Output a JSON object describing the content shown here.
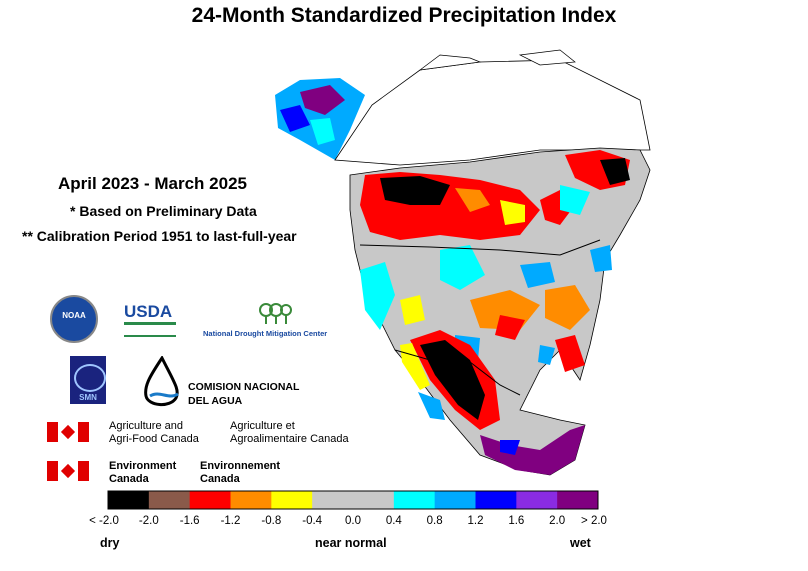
{
  "title": "24-Month Standardized Precipitation Index",
  "period": "April 2023 - March 2025",
  "note_preliminary": "* Based on Preliminary Data",
  "note_calibration": "** Calibration Period 1951 to last-full-year",
  "logos": {
    "noaa": "NOAA",
    "usda": "USDA",
    "ndmc": "National Drought Mitigation Center",
    "smn": "SMN",
    "conagua_line1": "COMISION NACIONAL",
    "conagua_line2": "DEL AGUA",
    "aafc_en_line1": "Agriculture and",
    "aafc_en_line2": "Agri-Food Canada",
    "aafc_fr_line1": "Agriculture et",
    "aafc_fr_line2": "Agroalimentaire Canada",
    "ec_en_line1": "Environment",
    "ec_en_line2": "Canada",
    "ec_fr_line1": "Environnement",
    "ec_fr_line2": "Canada"
  },
  "legend": {
    "colors": [
      "#000000",
      "#8a5a4a",
      "#ff0000",
      "#ff8c00",
      "#ffff00",
      "#c8c8c8",
      "#c8c8c8",
      "#00ffff",
      "#00aaff",
      "#0000ff",
      "#8a2be2",
      "#800080"
    ],
    "tick_labels": [
      "< -2.0",
      "-2.0",
      "-1.6",
      "-1.2",
      "-0.8",
      "-0.4",
      "0.0",
      "0.4",
      "0.8",
      "1.2",
      "1.6",
      "2.0",
      "> 2.0"
    ],
    "word_dry": "dry",
    "word_normal": "near normal",
    "word_wet": "wet"
  },
  "map_colors": {
    "land_normal": "#c8c8c8",
    "outside_grid": "#ffffff",
    "water": "#ffffff",
    "border": "#000000"
  }
}
